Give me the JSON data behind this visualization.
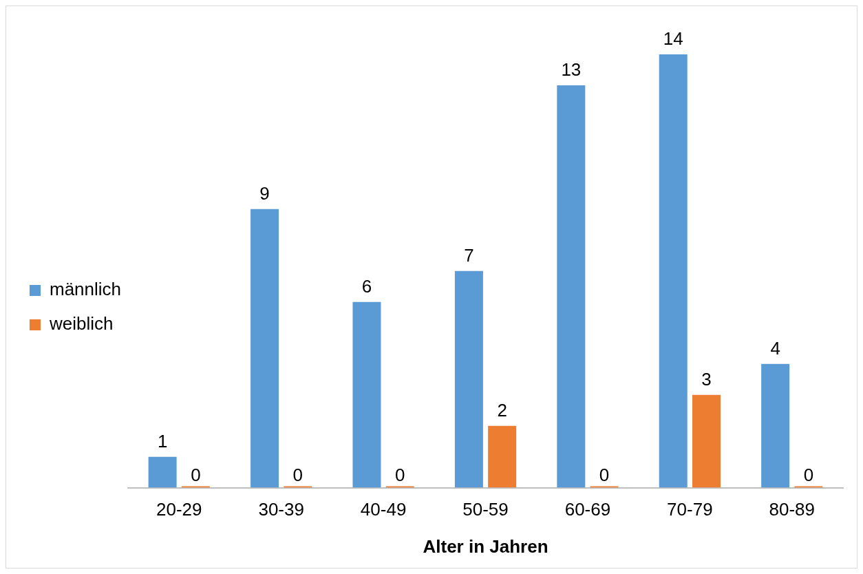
{
  "chart_data": {
    "type": "bar",
    "xlabel": "Alter in Jahren",
    "categories": [
      "20-29",
      "30-39",
      "40-49",
      "50-59",
      "60-69",
      "70-79",
      "80-89"
    ],
    "series": [
      {
        "name": "männlich",
        "color": "#5b9bd5",
        "values": [
          1,
          9,
          6,
          7,
          13,
          14,
          4
        ]
      },
      {
        "name": "weiblich",
        "color": "#ed7d31",
        "values": [
          0,
          0,
          0,
          2,
          0,
          3,
          0
        ]
      }
    ],
    "data_labels": true,
    "legend": "left",
    "grid": false,
    "tick_labels": "x"
  }
}
